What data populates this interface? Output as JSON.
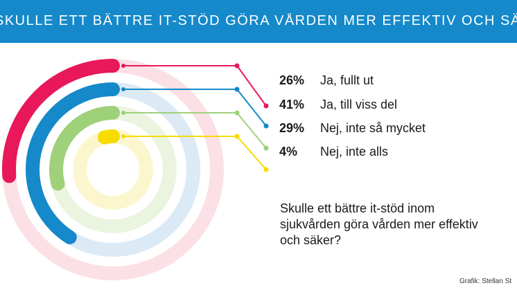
{
  "header": {
    "title": "SKULLE ETT BÄTTRE IT-STÖD GÖRA VÅRDEN MER EFFEKTIV OCH SÄKER?"
  },
  "question": "Skulle ett bättre it-stöd inom sjukvården göra vården mer effektiv och säker?",
  "credit": "Grafik: Stellan St",
  "colors": {
    "header_bg": "#1589c9",
    "background": "#ffffff"
  },
  "chart_data": {
    "type": "radial-bar",
    "title": "SKULLE ETT BÄTTRE IT-STÖD GÖRA VÅRDEN MER EFFEKTIV OCH SÄKER?",
    "unit": "%",
    "series": [
      {
        "label": "Ja, fullt ut",
        "value": 26,
        "display": "26%",
        "color": "#e8185a",
        "track_color": "#fbe0e6"
      },
      {
        "label": "Ja, till viss del",
        "value": 41,
        "display": "41%",
        "color": "#1589c9",
        "track_color": "#dceaf6"
      },
      {
        "label": "Nej, inte så mycket",
        "value": 29,
        "display": "29%",
        "color": "#9fd07a",
        "track_color": "#ebf4df"
      },
      {
        "label": "Nej, inte alls",
        "value": 4,
        "display": "4%",
        "color": "#f7dc00",
        "track_color": "#fcf6cf"
      }
    ]
  }
}
